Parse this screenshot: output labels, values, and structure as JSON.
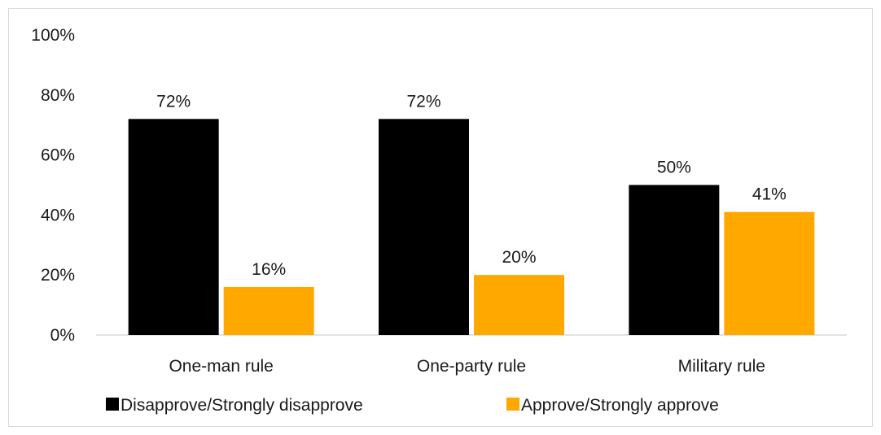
{
  "chart_data": {
    "type": "bar",
    "title": "",
    "xlabel": "",
    "ylabel": "",
    "categories": [
      "One-man rule",
      "One-party rule",
      "Military rule"
    ],
    "series": [
      {
        "name": "Disapprove/Strongly disapprove",
        "values": [
          72,
          72,
          50
        ],
        "labels": [
          "72%",
          "72%",
          "50%"
        ],
        "color": "#000000"
      },
      {
        "name": "Approve/Strongly approve",
        "values": [
          16,
          20,
          41
        ],
        "labels": [
          "16%",
          "20%",
          "41%"
        ],
        "color": "#FFA800"
      }
    ],
    "ylim": [
      0,
      100
    ],
    "yticks": [
      0,
      20,
      40,
      60,
      80,
      100
    ],
    "ytick_labels": [
      "0%",
      "20%",
      "40%",
      "60%",
      "80%",
      "100%"
    ],
    "grid": false,
    "legend_position": "bottom"
  }
}
